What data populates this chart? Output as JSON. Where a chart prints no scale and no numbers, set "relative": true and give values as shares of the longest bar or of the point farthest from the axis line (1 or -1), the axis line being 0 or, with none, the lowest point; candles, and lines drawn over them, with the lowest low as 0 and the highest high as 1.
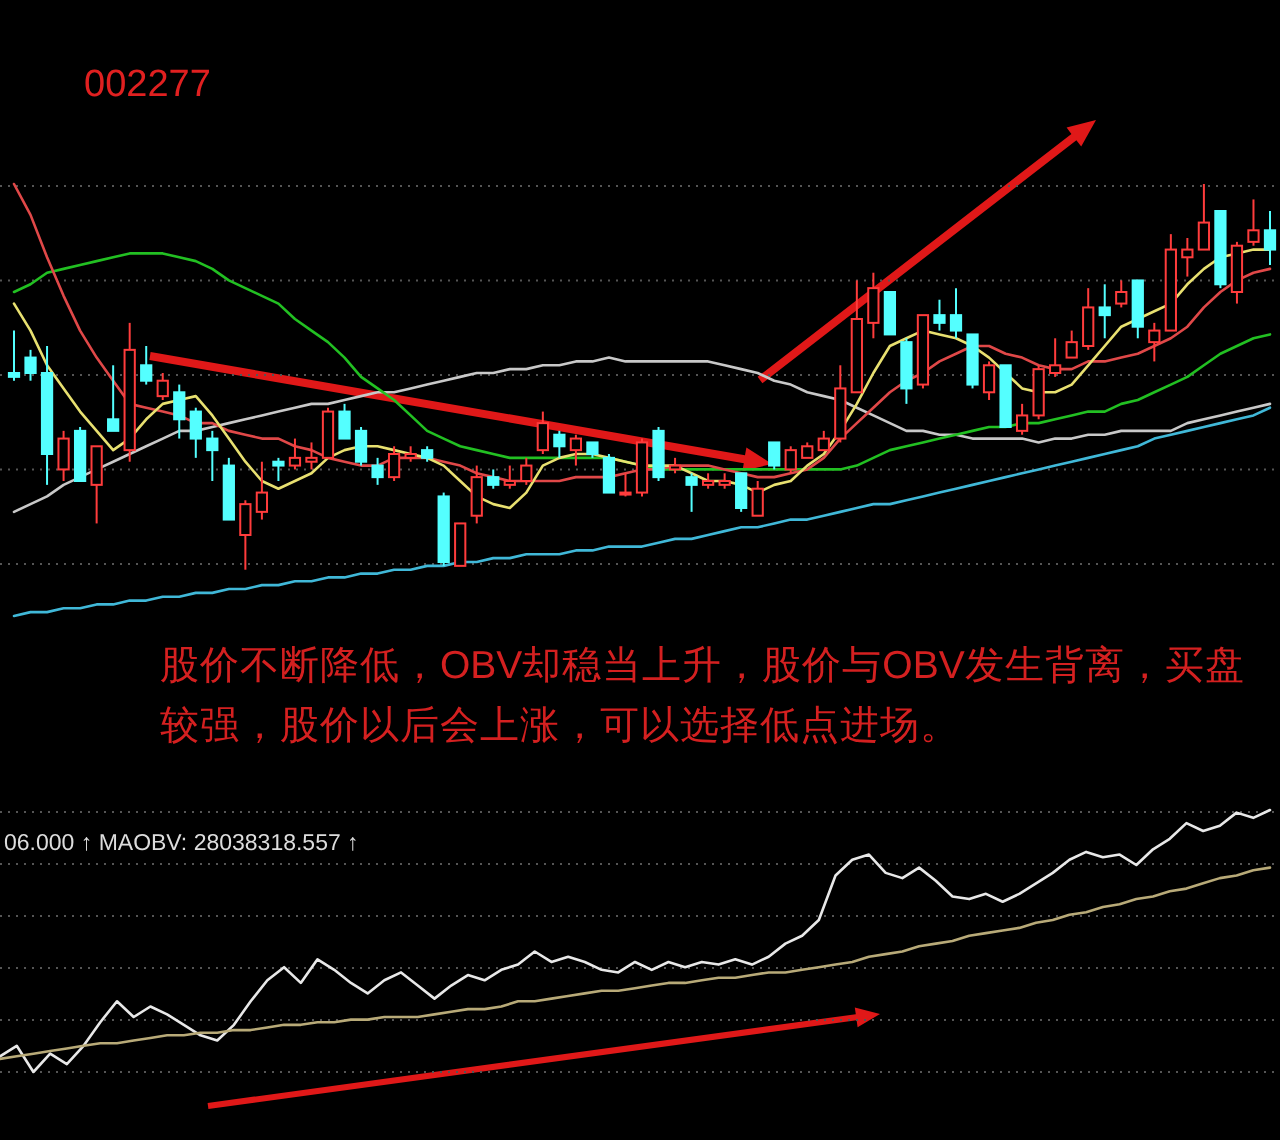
{
  "chart_data": [
    {
      "type": "candlestick",
      "title": "002277",
      "relative": true,
      "grid": true,
      "categories": [
        null,
        null,
        null,
        null,
        null,
        null,
        null,
        null,
        null,
        null,
        null,
        null,
        null,
        null,
        null,
        null,
        null,
        null,
        null,
        null,
        null,
        null,
        null,
        null,
        null,
        null,
        null,
        null,
        null,
        null,
        null,
        null,
        null,
        null,
        null,
        null,
        null,
        null,
        null,
        null,
        null,
        null,
        null,
        null,
        null,
        null,
        null,
        null,
        null,
        null,
        null,
        null,
        null,
        null,
        null,
        null,
        null,
        null,
        null,
        null,
        null,
        null,
        null,
        null,
        null,
        null,
        null,
        null,
        null,
        null,
        null,
        null,
        null,
        null,
        null,
        null,
        null
      ],
      "ohlc": [
        [
          0.51,
          0.62,
          0.49,
          0.5
        ],
        [
          0.55,
          0.57,
          0.49,
          0.51
        ],
        [
          0.51,
          0.58,
          0.22,
          0.3
        ],
        [
          0.26,
          0.36,
          0.23,
          0.34
        ],
        [
          0.36,
          0.37,
          0.23,
          0.23
        ],
        [
          0.22,
          0.32,
          0.12,
          0.32
        ],
        [
          0.39,
          0.53,
          0.36,
          0.36
        ],
        [
          0.31,
          0.64,
          0.28,
          0.57
        ],
        [
          0.53,
          0.58,
          0.48,
          0.49
        ],
        [
          0.45,
          0.51,
          0.44,
          0.49
        ],
        [
          0.46,
          0.48,
          0.34,
          0.39
        ],
        [
          0.41,
          0.42,
          0.29,
          0.34
        ],
        [
          0.34,
          0.36,
          0.23,
          0.31
        ],
        [
          0.27,
          0.29,
          0.13,
          0.13
        ],
        [
          0.09,
          0.18,
          0,
          0.17
        ],
        [
          0.15,
          0.28,
          0.13,
          0.2
        ],
        [
          0.28,
          0.29,
          0.23,
          0.27
        ],
        [
          0.27,
          0.34,
          0.26,
          0.29
        ],
        [
          0.28,
          0.33,
          0.26,
          0.29
        ],
        [
          0.29,
          0.42,
          0.29,
          0.41
        ],
        [
          0.41,
          0.43,
          0.34,
          0.34
        ],
        [
          0.36,
          0.37,
          0.27,
          0.28
        ],
        [
          0.27,
          0.29,
          0.22,
          0.24
        ],
        [
          0.24,
          0.32,
          0.23,
          0.3
        ],
        [
          0.29,
          0.32,
          0.28,
          0.3
        ],
        [
          0.31,
          0.32,
          0.28,
          0.29
        ],
        [
          0.19,
          0.2,
          0.01,
          0.02
        ],
        [
          0.01,
          0.12,
          0.01,
          0.12
        ],
        [
          0.14,
          0.27,
          0.12,
          0.24
        ],
        [
          0.24,
          0.26,
          0.21,
          0.22
        ],
        [
          0.22,
          0.27,
          0.21,
          0.23
        ],
        [
          0.23,
          0.29,
          0.22,
          0.27
        ],
        [
          0.31,
          0.41,
          0.3,
          0.38
        ],
        [
          0.35,
          0.36,
          0.29,
          0.32
        ],
        [
          0.31,
          0.35,
          0.27,
          0.34
        ],
        [
          0.33,
          0.33,
          0.29,
          0.3
        ],
        [
          0.29,
          0.3,
          0.2,
          0.2
        ],
        [
          0.2,
          0.25,
          0.19,
          0.2
        ],
        [
          0.2,
          0.34,
          0.19,
          0.33
        ],
        [
          0.36,
          0.37,
          0.23,
          0.24
        ],
        [
          0.26,
          0.29,
          0.25,
          0.27
        ],
        [
          0.24,
          0.25,
          0.15,
          0.22
        ],
        [
          0.22,
          0.25,
          0.21,
          0.23
        ],
        [
          0.22,
          0.25,
          0.21,
          0.23
        ],
        [
          0.25,
          0.25,
          0.15,
          0.16
        ],
        [
          0.14,
          0.23,
          0.14,
          0.21
        ],
        [
          0.33,
          0.33,
          0.26,
          0.27
        ],
        [
          0.26,
          0.32,
          0.25,
          0.31
        ],
        [
          0.29,
          0.33,
          0.29,
          0.32
        ],
        [
          0.31,
          0.36,
          0.31,
          0.34
        ],
        [
          0.34,
          0.53,
          0.33,
          0.47
        ],
        [
          0.46,
          0.75,
          0.46,
          0.65
        ],
        [
          0.64,
          0.77,
          0.6,
          0.73
        ],
        [
          0.72,
          0.72,
          0.61,
          0.61
        ],
        [
          0.59,
          0.6,
          0.43,
          0.47
        ],
        [
          0.48,
          0.66,
          0.47,
          0.66
        ],
        [
          0.66,
          0.7,
          0.62,
          0.64
        ],
        [
          0.66,
          0.73,
          0.6,
          0.62
        ],
        [
          0.61,
          0.61,
          0.47,
          0.48
        ],
        [
          0.46,
          0.54,
          0.44,
          0.53
        ],
        [
          0.53,
          0.53,
          0.37,
          0.37
        ],
        [
          0.36,
          0.43,
          0.35,
          0.4
        ],
        [
          0.4,
          0.53,
          0.39,
          0.52
        ],
        [
          0.51,
          0.6,
          0.5,
          0.53
        ],
        [
          0.55,
          0.62,
          0.55,
          0.59
        ],
        [
          0.58,
          0.73,
          0.57,
          0.68
        ],
        [
          0.68,
          0.74,
          0.6,
          0.66
        ],
        [
          0.69,
          0.75,
          0.68,
          0.72
        ],
        [
          0.75,
          0.75,
          0.6,
          0.63
        ],
        [
          0.59,
          0.64,
          0.54,
          0.62
        ],
        [
          0.62,
          0.87,
          0.62,
          0.83
        ],
        [
          0.81,
          0.86,
          0.76,
          0.83
        ],
        [
          0.83,
          1,
          0.83,
          0.9
        ],
        [
          0.93,
          0.93,
          0.73,
          0.74
        ],
        [
          0.72,
          0.85,
          0.69,
          0.84
        ],
        [
          0.85,
          0.96,
          0.84,
          0.88
        ],
        [
          0.88,
          0.93,
          0.79,
          0.83
        ]
      ],
      "series": [
        {
          "type": "line",
          "color": "#40b8d8",
          "values": [
            -0.12,
            -0.11,
            -0.11,
            -0.1,
            -0.1,
            -0.09,
            -0.09,
            -0.08,
            -0.08,
            -0.07,
            -0.07,
            -0.06,
            -0.06,
            -0.05,
            -0.05,
            -0.04,
            -0.04,
            -0.03,
            -0.03,
            -0.02,
            -0.02,
            -0.01,
            -0.01,
            0.0,
            0.0,
            0.01,
            0.01,
            0.02,
            0.02,
            0.03,
            0.03,
            0.04,
            0.04,
            0.04,
            0.05,
            0.05,
            0.06,
            0.06,
            0.06,
            0.07,
            0.08,
            0.08,
            0.09,
            0.1,
            0.11,
            0.11,
            0.12,
            0.13,
            0.13,
            0.14,
            0.15,
            0.16,
            0.17,
            0.17,
            0.18,
            0.19,
            0.2,
            0.21,
            0.22,
            0.23,
            0.24,
            0.25,
            0.26,
            0.27,
            0.28,
            0.29,
            0.3,
            0.31,
            0.32,
            0.34,
            0.35,
            0.36,
            0.37,
            0.38,
            0.39,
            0.4,
            0.42
          ]
        },
        {
          "type": "line",
          "color": "#c8c8c8",
          "values": [
            0.15,
            0.17,
            0.19,
            0.22,
            0.24,
            0.26,
            0.28,
            0.3,
            0.32,
            0.34,
            0.36,
            0.36,
            0.37,
            0.38,
            0.39,
            0.4,
            0.41,
            0.42,
            0.43,
            0.43,
            0.44,
            0.45,
            0.46,
            0.46,
            0.47,
            0.48,
            0.49,
            0.5,
            0.51,
            0.51,
            0.52,
            0.52,
            0.53,
            0.53,
            0.54,
            0.54,
            0.55,
            0.54,
            0.54,
            0.54,
            0.54,
            0.54,
            0.54,
            0.53,
            0.52,
            0.51,
            0.49,
            0.48,
            0.46,
            0.45,
            0.44,
            0.42,
            0.4,
            0.38,
            0.36,
            0.36,
            0.35,
            0.35,
            0.34,
            0.34,
            0.34,
            0.34,
            0.33,
            0.34,
            0.34,
            0.35,
            0.35,
            0.36,
            0.36,
            0.36,
            0.36,
            0.38,
            0.39,
            0.4,
            0.41,
            0.42,
            0.43
          ]
        },
        {
          "type": "line",
          "color": "#22c022",
          "values": [
            0.72,
            0.74,
            0.77,
            0.78,
            0.79,
            0.8,
            0.81,
            0.82,
            0.82,
            0.82,
            0.81,
            0.8,
            0.78,
            0.75,
            0.73,
            0.71,
            0.69,
            0.65,
            0.62,
            0.59,
            0.55,
            0.5,
            0.47,
            0.44,
            0.4,
            0.36,
            0.34,
            0.32,
            0.31,
            0.3,
            0.29,
            0.29,
            0.29,
            0.29,
            0.29,
            0.29,
            0.29,
            0.28,
            0.27,
            0.26,
            0.26,
            0.26,
            0.26,
            0.26,
            0.26,
            0.26,
            0.26,
            0.26,
            0.26,
            0.26,
            0.26,
            0.27,
            0.29,
            0.31,
            0.32,
            0.33,
            0.34,
            0.35,
            0.36,
            0.37,
            0.37,
            0.38,
            0.38,
            0.39,
            0.4,
            0.41,
            0.41,
            0.43,
            0.44,
            0.46,
            0.48,
            0.5,
            0.53,
            0.56,
            0.58,
            0.6,
            0.61
          ]
        },
        {
          "type": "line",
          "color": "#e04848",
          "values": [
            1.0,
            0.92,
            0.81,
            0.71,
            0.62,
            0.55,
            0.49,
            0.43,
            0.42,
            0.41,
            0.4,
            0.38,
            0.38,
            0.36,
            0.35,
            0.34,
            0.34,
            0.32,
            0.31,
            0.29,
            0.28,
            0.27,
            0.27,
            0.29,
            0.29,
            0.29,
            0.28,
            0.27,
            0.25,
            0.24,
            0.23,
            0.23,
            0.23,
            0.23,
            0.24,
            0.24,
            0.24,
            0.25,
            0.26,
            0.26,
            0.27,
            0.27,
            0.27,
            0.26,
            0.25,
            0.24,
            0.24,
            0.25,
            0.26,
            0.29,
            0.34,
            0.38,
            0.42,
            0.46,
            0.49,
            0.51,
            0.54,
            0.56,
            0.58,
            0.58,
            0.56,
            0.55,
            0.53,
            0.52,
            0.52,
            0.54,
            0.54,
            0.55,
            0.56,
            0.58,
            0.6,
            0.63,
            0.68,
            0.72,
            0.75,
            0.77,
            0.78
          ]
        },
        {
          "type": "line",
          "color": "#e8e070",
          "values": [
            0.69,
            0.62,
            0.53,
            0.47,
            0.41,
            0.36,
            0.31,
            0.34,
            0.39,
            0.43,
            0.44,
            0.45,
            0.4,
            0.34,
            0.28,
            0.23,
            0.21,
            0.23,
            0.25,
            0.29,
            0.31,
            0.32,
            0.32,
            0.31,
            0.3,
            0.29,
            0.27,
            0.23,
            0.19,
            0.17,
            0.16,
            0.2,
            0.27,
            0.29,
            0.3,
            0.3,
            0.29,
            0.28,
            0.27,
            0.27,
            0.27,
            0.25,
            0.23,
            0.23,
            0.22,
            0.2,
            0.22,
            0.23,
            0.27,
            0.3,
            0.36,
            0.43,
            0.51,
            0.58,
            0.6,
            0.62,
            0.61,
            0.6,
            0.58,
            0.55,
            0.51,
            0.47,
            0.46,
            0.46,
            0.48,
            0.53,
            0.58,
            0.63,
            0.65,
            0.67,
            0.69,
            0.74,
            0.78,
            0.81,
            0.82,
            0.83,
            0.83
          ]
        }
      ]
    },
    {
      "type": "line",
      "relative": true,
      "grid": true,
      "categories": [
        null,
        null,
        null,
        null,
        null,
        null,
        null,
        null,
        null,
        null,
        null,
        null,
        null,
        null,
        null,
        null,
        null,
        null,
        null,
        null,
        null,
        null,
        null,
        null,
        null,
        null,
        null,
        null,
        null,
        null,
        null,
        null,
        null,
        null,
        null,
        null,
        null,
        null,
        null,
        null,
        null,
        null,
        null,
        null,
        null,
        null,
        null,
        null,
        null,
        null,
        null,
        null,
        null,
        null,
        null,
        null,
        null,
        null,
        null,
        null,
        null,
        null,
        null,
        null,
        null,
        null,
        null,
        null,
        null,
        null,
        null,
        null,
        null,
        null,
        null,
        null,
        null
      ],
      "annotations": [
        "股价不断降低，OBV却稳当上升，股价与OBV发生背离，买盘较强，股价以后会上涨，可以选择低点进场。",
        "06.000 ↑ MAOBV: 28038318.557 ↑"
      ],
      "series": [
        {
          "color": "#e8e8e8",
          "values": [
            0.06,
            0.1,
            0,
            0.07,
            0.03,
            0.1,
            0.19,
            0.27,
            0.21,
            0.25,
            0.22,
            0.18,
            0.14,
            0.12,
            0.18,
            0.27,
            0.35,
            0.4,
            0.34,
            0.43,
            0.39,
            0.34,
            0.3,
            0.35,
            0.38,
            0.33,
            0.28,
            0.33,
            0.37,
            0.35,
            0.39,
            0.41,
            0.46,
            0.42,
            0.44,
            0.42,
            0.39,
            0.38,
            0.42,
            0.39,
            0.42,
            0.4,
            0.42,
            0.41,
            0.43,
            0.41,
            0.44,
            0.49,
            0.52,
            0.58,
            0.75,
            0.81,
            0.83,
            0.76,
            0.74,
            0.78,
            0.73,
            0.67,
            0.66,
            0.68,
            0.65,
            0.68,
            0.72,
            0.76,
            0.81,
            0.84,
            0.82,
            0.83,
            0.79,
            0.85,
            0.89,
            0.95,
            0.92,
            0.94,
            0.99,
            0.97,
            1
          ]
        },
        {
          "color": "#b8aa78",
          "values": [
            0.05,
            0.06,
            0.07,
            0.08,
            0.09,
            0.1,
            0.11,
            0.11,
            0.12,
            0.13,
            0.14,
            0.14,
            0.15,
            0.15,
            0.16,
            0.16,
            0.17,
            0.18,
            0.18,
            0.19,
            0.19,
            0.2,
            0.2,
            0.21,
            0.21,
            0.21,
            0.22,
            0.23,
            0.24,
            0.24,
            0.25,
            0.27,
            0.27,
            0.28,
            0.29,
            0.3,
            0.31,
            0.31,
            0.32,
            0.33,
            0.34,
            0.34,
            0.35,
            0.36,
            0.36,
            0.37,
            0.38,
            0.38,
            0.39,
            0.4,
            0.41,
            0.42,
            0.44,
            0.45,
            0.46,
            0.48,
            0.49,
            0.5,
            0.52,
            0.53,
            0.54,
            0.55,
            0.57,
            0.58,
            0.6,
            0.61,
            0.63,
            0.64,
            0.66,
            0.67,
            0.69,
            0.7,
            0.72,
            0.74,
            0.75,
            0.77,
            0.78
          ]
        }
      ]
    }
  ]
}
